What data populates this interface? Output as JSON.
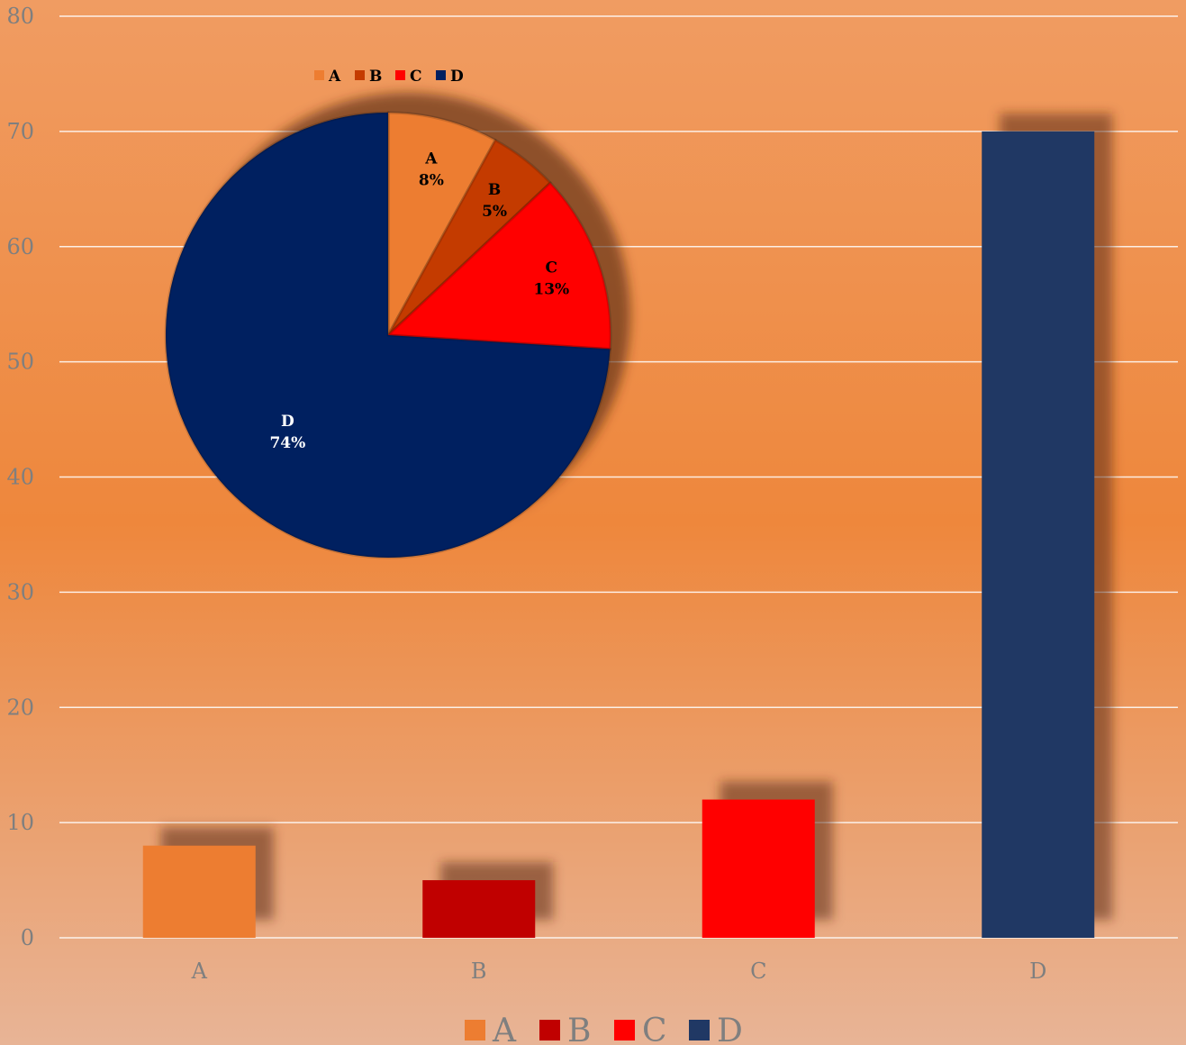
{
  "chart_data": [
    {
      "type": "bar",
      "categories": [
        "A",
        "B",
        "C",
        "D"
      ],
      "values": [
        8,
        5,
        12,
        70
      ],
      "ylim": [
        0,
        80
      ],
      "yticks": [
        0,
        10,
        20,
        30,
        40,
        50,
        60,
        70,
        80
      ],
      "grid": true,
      "legend_position": "bottom",
      "legend": [
        "A",
        "B",
        "C",
        "D"
      ],
      "colors": [
        "#ed7d31",
        "#c00000",
        "#ff0000",
        "#203864"
      ]
    },
    {
      "type": "pie",
      "categories": [
        "A",
        "B",
        "C",
        "D"
      ],
      "values": [
        8,
        5,
        13,
        74
      ],
      "labels": [
        "8%",
        "5%",
        "13%",
        "74%"
      ],
      "legend_position": "top",
      "legend": [
        "A",
        "B",
        "C",
        "D"
      ],
      "colors": [
        "#ed7d31",
        "#c43b00",
        "#ff0000",
        "#002060"
      ],
      "label_colors": [
        "#000000",
        "#000000",
        "#000000",
        "#ffffff"
      ]
    }
  ]
}
